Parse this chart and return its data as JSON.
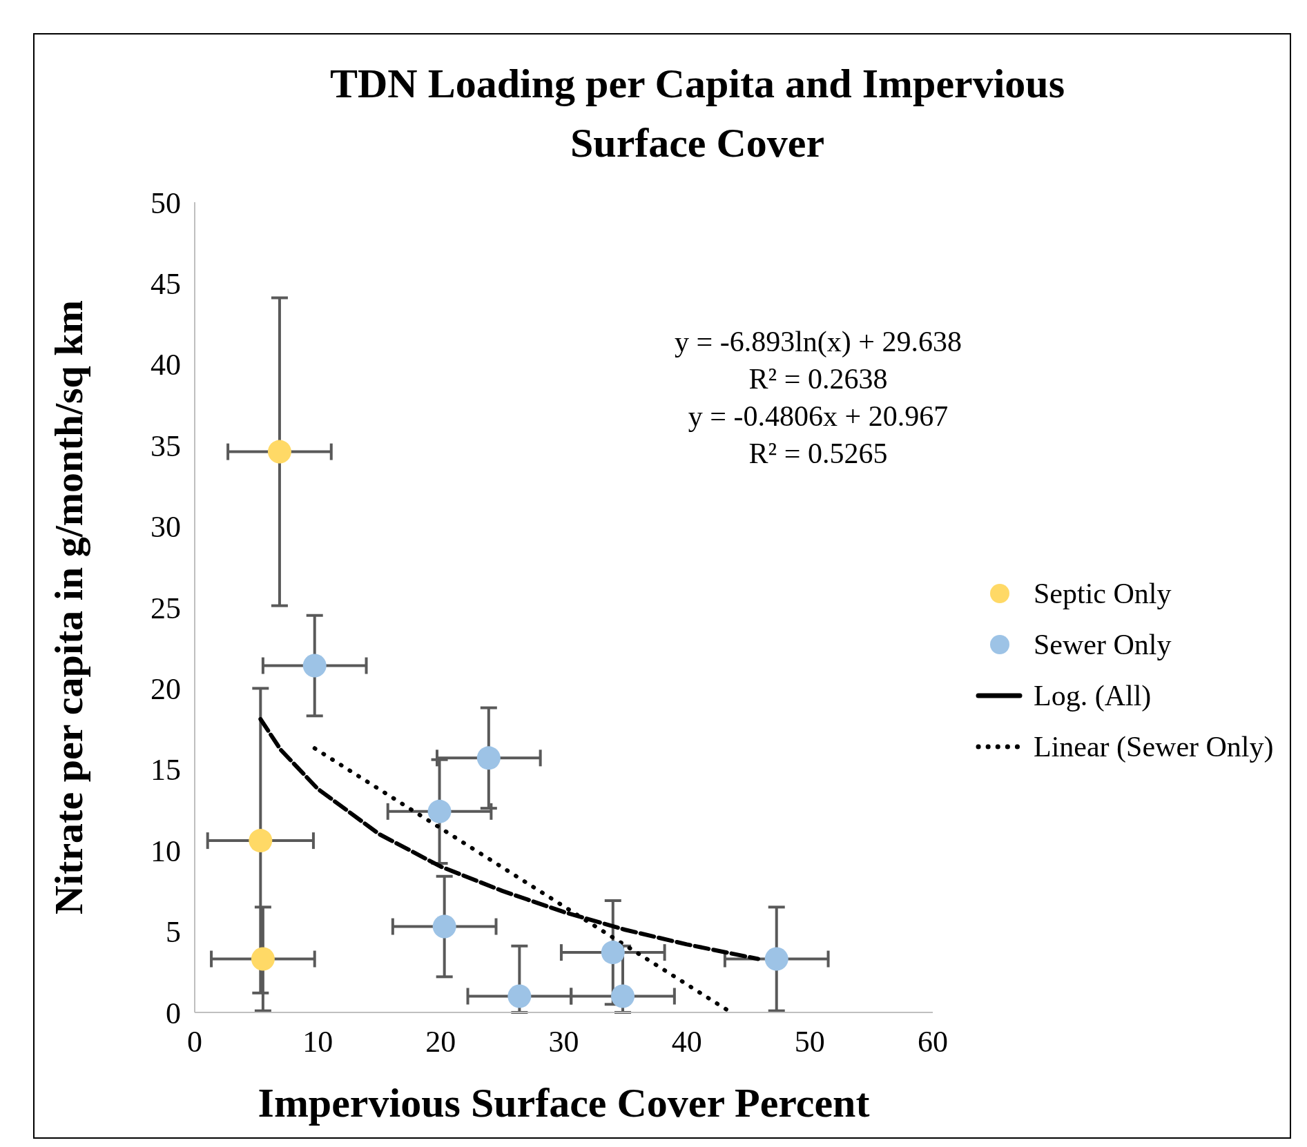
{
  "chart_data": {
    "type": "scatter",
    "title": "TDN Loading per Capita and Impervious Surface Cover",
    "xlabel": "Impervious Surface Cover Percent",
    "ylabel": "Nitrate per capita in g/month/sq km",
    "xlim": [
      0,
      60
    ],
    "xticks": [
      0,
      10,
      20,
      30,
      40,
      50,
      60
    ],
    "ylim": [
      0,
      50
    ],
    "yticks": [
      0,
      5,
      10,
      15,
      20,
      25,
      30,
      35,
      40,
      45,
      50
    ],
    "legend": "right",
    "annotations": [
      "y = -6.893ln(x) + 29.638",
      "R² = 0.2638",
      "y = -0.4806x + 20.967",
      "R² = 0.5265"
    ],
    "series": [
      {
        "name": "Septic Only",
        "marker": "circle",
        "color": "#ffd966",
        "x": [
          6.9,
          5.35,
          5.55
        ],
        "values": [
          34.6,
          10.6,
          3.3
        ],
        "errors": [
          9.5,
          9.4,
          3.2
        ],
        "xerrors": [
          4.2,
          4.3,
          4.2
        ]
      },
      {
        "name": "Sewer Only",
        "marker": "circle",
        "color": "#9dc3e6",
        "x": [
          9.75,
          23.9,
          19.9,
          20.3,
          26.4,
          34.0,
          34.8,
          47.3
        ],
        "values": [
          21.4,
          15.7,
          12.4,
          5.3,
          1.0,
          3.7,
          1.0,
          3.3
        ],
        "errors": [
          3.1,
          3.1,
          3.2,
          3.1,
          [
            0,
            4.1
          ],
          [
            0.5,
            6.9
          ],
          [
            0,
            4.1
          ],
          [
            0.1,
            6.5
          ]
        ],
        "xerrors": [
          4.2,
          4.2,
          4.2,
          4.2,
          4.2,
          4.2,
          4.2,
          4.2
        ]
      },
      {
        "name": "Log. (All)",
        "type": "line",
        "marker": "none",
        "line_style": "dashed",
        "color": "#000000",
        "x": [
          5.35,
          7,
          10,
          15,
          20,
          25,
          30,
          35,
          40,
          45.8
        ],
        "values": [
          18.1,
          16.2,
          13.8,
          11.0,
          9.0,
          7.5,
          6.2,
          5.1,
          4.2,
          3.3
        ]
      },
      {
        "name": "Linear (Sewer Only)",
        "type": "line",
        "marker": "none",
        "line_style": "dotted",
        "color": "#000000",
        "x": [
          9.75,
          43.6
        ],
        "values": [
          16.3,
          0.0
        ]
      }
    ]
  }
}
